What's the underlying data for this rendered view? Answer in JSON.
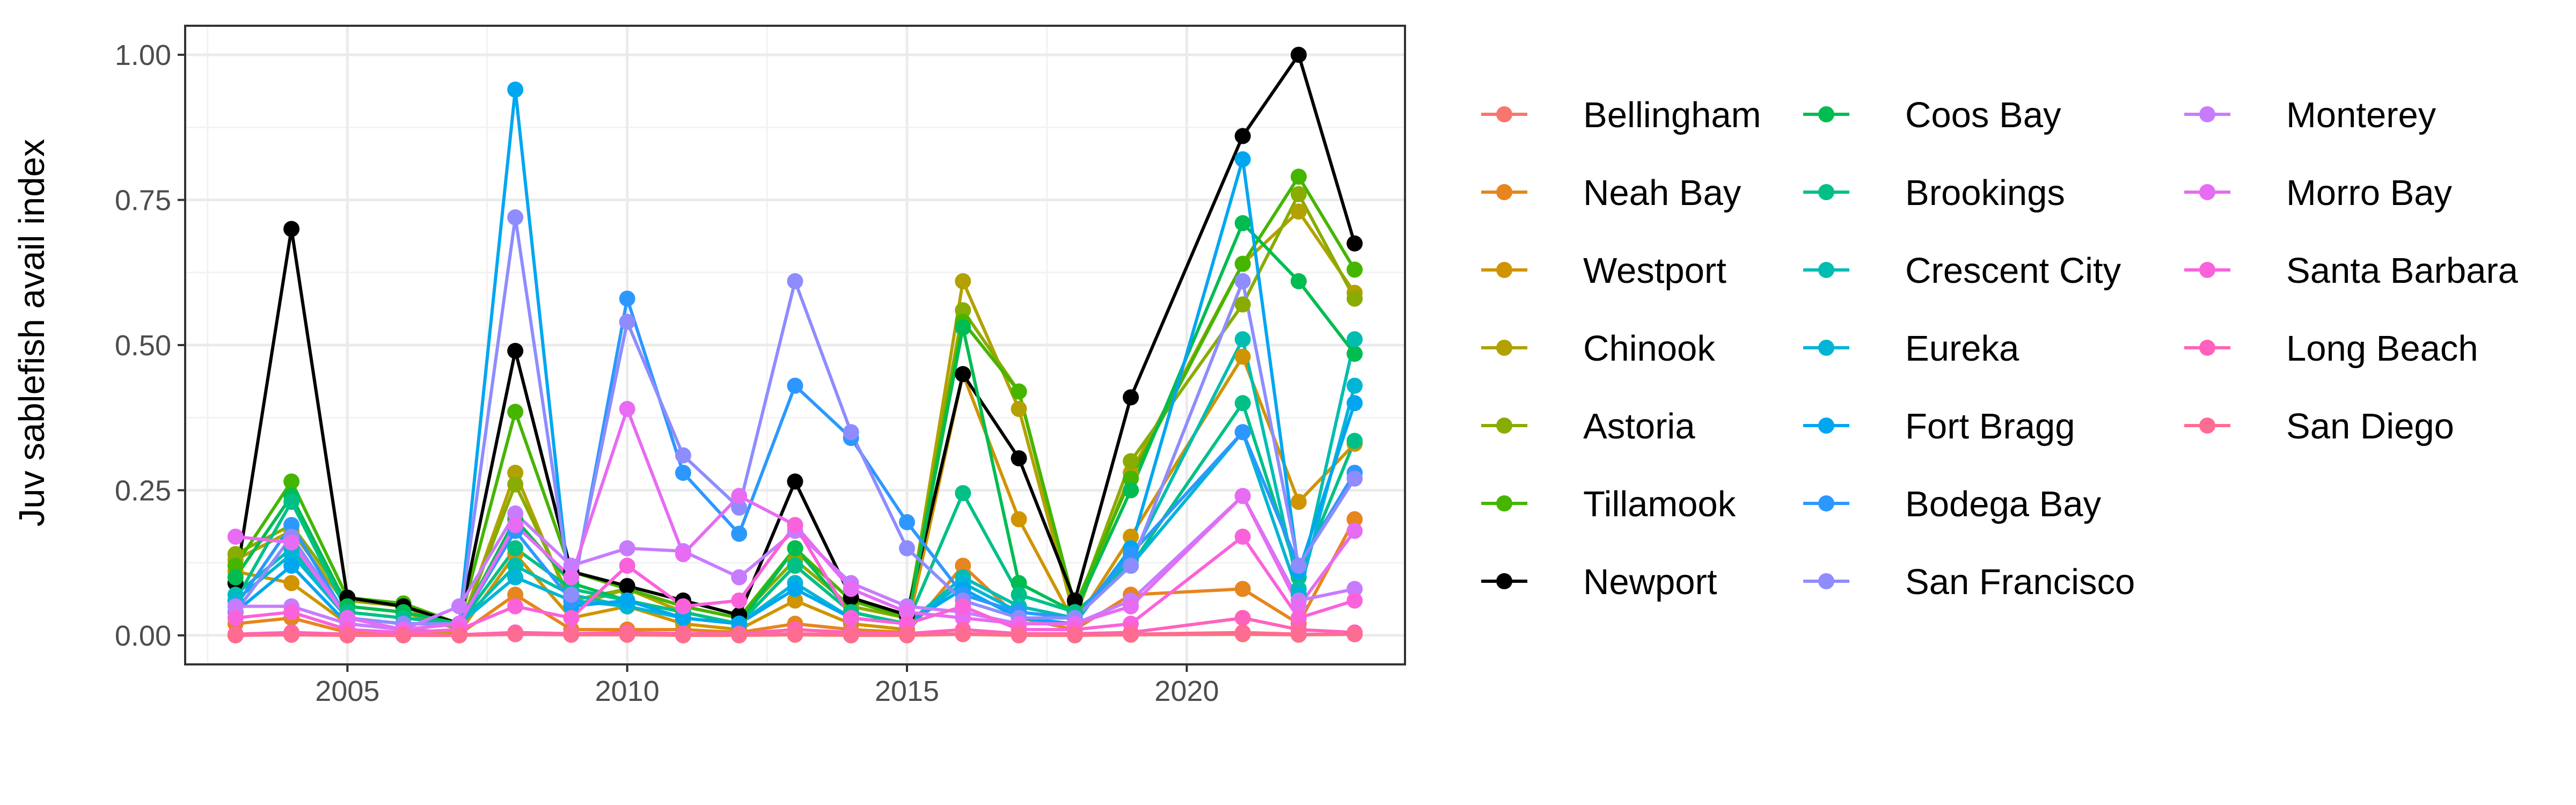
{
  "chart_data": {
    "type": "line",
    "ylabel": "Juv sablefish avail index",
    "xlabel": "",
    "xlim": [
      2002.1,
      2023.9
    ],
    "ylim": [
      -0.05,
      1.05
    ],
    "x_ticks": [
      2005,
      2010,
      2015,
      2020
    ],
    "x_tick_labels": [
      "2005",
      "2010",
      "2015",
      "2020"
    ],
    "y_ticks": [
      0,
      0.25,
      0.5,
      0.75,
      1.0
    ],
    "y_tick_labels": [
      "0.00",
      "0.25",
      "0.50",
      "0.75",
      "1.00"
    ],
    "grid": true,
    "legend_position": "right",
    "x": [
      2003,
      2004,
      2005,
      2006,
      2007,
      2008,
      2009,
      2010,
      2011,
      2012,
      2013,
      2014,
      2015,
      2016,
      2017,
      2018,
      2019,
      2021,
      2022,
      2023
    ],
    "series": [
      {
        "name": "Bellingham",
        "color": "#F8766D",
        "values": [
          0.0,
          0.001,
          0.0,
          0.0,
          0.0,
          0.002,
          0.001,
          0.001,
          0.0,
          0.0,
          0.001,
          0.0,
          0.0,
          0.002,
          0.0,
          0.0,
          0.001,
          0.002,
          0.001,
          0.002
        ]
      },
      {
        "name": "Neah Bay",
        "color": "#E7851E",
        "values": [
          0.02,
          0.03,
          0.005,
          0.003,
          0.002,
          0.07,
          0.01,
          0.01,
          0.01,
          0.005,
          0.02,
          0.01,
          0.005,
          0.12,
          0.03,
          0.01,
          0.07,
          0.08,
          0.02,
          0.2
        ]
      },
      {
        "name": "Westport",
        "color": "#D09400",
        "values": [
          0.11,
          0.09,
          0.02,
          0.01,
          0.005,
          0.14,
          0.03,
          0.05,
          0.02,
          0.01,
          0.06,
          0.02,
          0.01,
          0.45,
          0.2,
          0.02,
          0.17,
          0.48,
          0.23,
          0.33
        ]
      },
      {
        "name": "Chinook",
        "color": "#B2A100",
        "values": [
          0.13,
          0.18,
          0.05,
          0.04,
          0.01,
          0.28,
          0.05,
          0.08,
          0.04,
          0.02,
          0.12,
          0.04,
          0.02,
          0.61,
          0.39,
          0.03,
          0.28,
          0.64,
          0.73,
          0.59
        ]
      },
      {
        "name": "Astoria",
        "color": "#89AC00",
        "values": [
          0.14,
          0.19,
          0.06,
          0.05,
          0.01,
          0.26,
          0.06,
          0.08,
          0.05,
          0.03,
          0.13,
          0.05,
          0.03,
          0.56,
          0.42,
          0.04,
          0.3,
          0.57,
          0.76,
          0.58
        ]
      },
      {
        "name": "Tillamook",
        "color": "#45B500",
        "values": [
          0.12,
          0.265,
          0.065,
          0.055,
          0.02,
          0.385,
          0.11,
          0.08,
          0.05,
          0.03,
          0.15,
          0.06,
          0.03,
          0.54,
          0.42,
          0.05,
          0.27,
          0.64,
          0.79,
          0.63
        ]
      },
      {
        "name": "Newport",
        "color": "#000000",
        "values": [
          0.09,
          0.7,
          0.065,
          0.05,
          0.02,
          0.49,
          0.11,
          0.085,
          0.06,
          0.035,
          0.265,
          0.065,
          0.035,
          0.45,
          0.305,
          0.06,
          0.41,
          0.86,
          1.0,
          0.675
        ]
      },
      {
        "name": "Coos Bay",
        "color": "#00BC51",
        "values": [
          0.1,
          0.24,
          0.05,
          0.04,
          0.02,
          0.2,
          0.09,
          0.06,
          0.04,
          0.02,
          0.15,
          0.04,
          0.02,
          0.53,
          0.09,
          0.04,
          0.25,
          0.71,
          0.61,
          0.485
        ]
      },
      {
        "name": "Brookings",
        "color": "#00C087",
        "values": [
          0.06,
          0.23,
          0.04,
          0.03,
          0.02,
          0.15,
          0.08,
          0.06,
          0.04,
          0.02,
          0.12,
          0.04,
          0.02,
          0.245,
          0.07,
          0.04,
          0.12,
          0.4,
          0.1,
          0.335
        ]
      },
      {
        "name": "Crescent City",
        "color": "#00BDB2",
        "values": [
          0.07,
          0.15,
          0.03,
          0.02,
          0.02,
          0.12,
          0.07,
          0.05,
          0.03,
          0.02,
          0.09,
          0.03,
          0.02,
          0.1,
          0.05,
          0.03,
          0.13,
          0.51,
          0.08,
          0.51
        ]
      },
      {
        "name": "Eureka",
        "color": "#00B5D6",
        "values": [
          0.06,
          0.14,
          0.03,
          0.02,
          0.02,
          0.1,
          0.06,
          0.05,
          0.03,
          0.02,
          0.09,
          0.03,
          0.02,
          0.09,
          0.04,
          0.03,
          0.12,
          0.35,
          0.07,
          0.43
        ]
      },
      {
        "name": "Fort Bragg",
        "color": "#00A6F0",
        "values": [
          0.04,
          0.12,
          0.02,
          0.01,
          0.02,
          0.94,
          0.05,
          0.06,
          0.03,
          0.02,
          0.08,
          0.03,
          0.02,
          0.08,
          0.03,
          0.02,
          0.15,
          0.82,
          0.11,
          0.4
        ]
      },
      {
        "name": "Bodega Bay",
        "color": "#2C98FF",
        "values": [
          0.05,
          0.19,
          0.03,
          0.02,
          0.02,
          0.18,
          0.06,
          0.58,
          0.28,
          0.175,
          0.43,
          0.34,
          0.195,
          0.07,
          0.04,
          0.03,
          0.14,
          0.35,
          0.12,
          0.28
        ]
      },
      {
        "name": "San Francisco",
        "color": "#8E8CFF",
        "values": [
          0.04,
          0.17,
          0.03,
          0.02,
          0.02,
          0.72,
          0.07,
          0.54,
          0.31,
          0.22,
          0.61,
          0.35,
          0.15,
          0.06,
          0.03,
          0.03,
          0.12,
          0.61,
          0.12,
          0.27
        ]
      },
      {
        "name": "Monterey",
        "color": "#C77CFF",
        "values": [
          0.05,
          0.05,
          0.02,
          0.01,
          0.05,
          0.21,
          0.12,
          0.15,
          0.145,
          0.1,
          0.18,
          0.09,
          0.05,
          0.04,
          0.02,
          0.02,
          0.06,
          0.24,
          0.06,
          0.08
        ]
      },
      {
        "name": "Morro Bay",
        "color": "#E76BF3",
        "values": [
          0.17,
          0.16,
          0.03,
          0.01,
          0.02,
          0.19,
          0.1,
          0.39,
          0.14,
          0.24,
          0.19,
          0.08,
          0.04,
          0.03,
          0.02,
          0.02,
          0.05,
          0.24,
          0.05,
          0.18
        ]
      },
      {
        "name": "Santa Barbara",
        "color": "#FA62DB",
        "values": [
          0.03,
          0.04,
          0.01,
          0.005,
          0.01,
          0.05,
          0.03,
          0.12,
          0.05,
          0.06,
          0.19,
          0.03,
          0.02,
          0.05,
          0.01,
          0.01,
          0.02,
          0.17,
          0.03,
          0.06
        ]
      },
      {
        "name": "Long Beach",
        "color": "#FF62BC",
        "values": [
          0.002,
          0.005,
          0.002,
          0.001,
          0.001,
          0.005,
          0.003,
          0.005,
          0.003,
          0.003,
          0.01,
          0.005,
          0.003,
          0.01,
          0.003,
          0.003,
          0.005,
          0.03,
          0.01,
          0.005
        ]
      },
      {
        "name": "San Diego",
        "color": "#FF6C91",
        "values": [
          0.0,
          0.001,
          0.0,
          0.0,
          0.0,
          0.002,
          0.001,
          0.002,
          0.001,
          0.001,
          0.003,
          0.001,
          0.001,
          0.003,
          0.001,
          0.001,
          0.002,
          0.005,
          0.002,
          0.002
        ]
      }
    ]
  }
}
